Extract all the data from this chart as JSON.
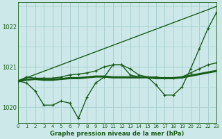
{
  "title": "Graphe pression niveau de la mer (hPa)",
  "bg_color": "#cce8e8",
  "grid_color": "#a8d0d0",
  "line_color": "#1a5c1a",
  "xlim": [
    0,
    23
  ],
  "ylim": [
    1019.6,
    1022.6
  ],
  "yticks": [
    1020,
    1021,
    1022
  ],
  "xticks": [
    0,
    1,
    2,
    3,
    4,
    5,
    6,
    7,
    8,
    9,
    10,
    11,
    12,
    13,
    14,
    15,
    16,
    17,
    18,
    19,
    20,
    21,
    22,
    23
  ],
  "series": [
    {
      "x": [
        0,
        23
      ],
      "y": [
        1020.65,
        1022.5
      ],
      "marker": false,
      "lw": 1.0
    },
    {
      "x": [
        0,
        1,
        2,
        3,
        4,
        5,
        6,
        7,
        8,
        9,
        10,
        11,
        12,
        13,
        14,
        15,
        16,
        17,
        18,
        19,
        20,
        21,
        22,
        23
      ],
      "y": [
        1020.65,
        1020.68,
        1020.7,
        1020.68,
        1020.68,
        1020.7,
        1020.72,
        1020.72,
        1020.74,
        1020.76,
        1020.76,
        1020.74,
        1020.74,
        1020.74,
        1020.74,
        1020.74,
        1020.72,
        1020.72,
        1020.72,
        1020.74,
        1020.78,
        1020.82,
        1020.86,
        1020.9
      ],
      "marker": false,
      "lw": 2.2
    },
    {
      "x": [
        0,
        1,
        2,
        3,
        4,
        5,
        6,
        7,
        8,
        9,
        10,
        11,
        12,
        13,
        14,
        15,
        16,
        17,
        18,
        19,
        20,
        21,
        22,
        23
      ],
      "y": [
        1020.65,
        1020.75,
        1020.72,
        1020.72,
        1020.72,
        1020.75,
        1020.8,
        1020.82,
        1020.85,
        1020.9,
        1021.0,
        1021.05,
        1021.05,
        1020.95,
        1020.8,
        1020.75,
        1020.75,
        1020.72,
        1020.72,
        1020.75,
        1020.85,
        1020.95,
        1021.05,
        1021.1
      ],
      "marker": true,
      "lw": 1.0
    },
    {
      "x": [
        0,
        1,
        2,
        3,
        4,
        5,
        6,
        7,
        8,
        9,
        10,
        11,
        12,
        13,
        14,
        15,
        16,
        17,
        18,
        19,
        20,
        21,
        22,
        23
      ],
      "y": [
        1020.65,
        1020.6,
        1020.4,
        1020.05,
        1020.05,
        1020.15,
        1020.1,
        1019.72,
        1020.25,
        1020.6,
        1020.75,
        1021.05,
        1021.05,
        1020.8,
        1020.75,
        1020.75,
        1020.55,
        1020.3,
        1020.3,
        1020.5,
        1020.95,
        1021.45,
        1021.95,
        1022.35
      ],
      "marker": true,
      "lw": 1.0
    }
  ]
}
